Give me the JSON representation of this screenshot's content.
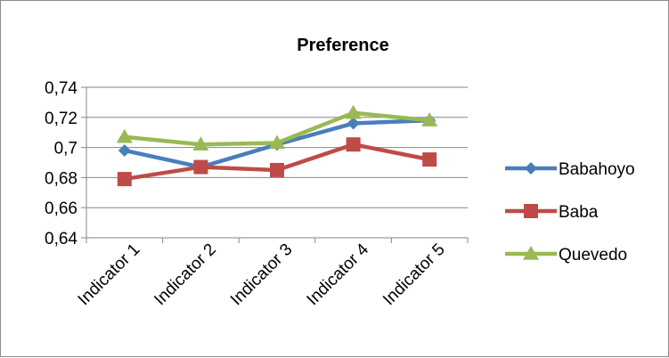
{
  "chart_data": {
    "type": "line",
    "title": "Preference",
    "xlabel": "",
    "ylabel": "",
    "categories": [
      "Indicator 1",
      "Indicator 2",
      "Indicator 3",
      "Indicator 4",
      "Indicator 5"
    ],
    "ylim": [
      0.64,
      0.74
    ],
    "yticks": [
      0.64,
      0.66,
      0.68,
      0.7,
      0.72,
      0.74
    ],
    "ytick_labels": [
      "0,64",
      "0,66",
      "0,68",
      "0,7",
      "0,72",
      "0,74"
    ],
    "grid": true,
    "legend_position": "right",
    "series": [
      {
        "name": "Babahoyo",
        "values": [
          0.698,
          0.687,
          0.702,
          0.716,
          0.718
        ],
        "color": "#4a7ebb",
        "marker": "diamond"
      },
      {
        "name": "Baba",
        "values": [
          0.679,
          0.687,
          0.685,
          0.702,
          0.692
        ],
        "color": "#be4b48",
        "marker": "square"
      },
      {
        "name": "Quevedo",
        "values": [
          0.707,
          0.702,
          0.703,
          0.723,
          0.718
        ],
        "color": "#98b954",
        "marker": "triangle"
      }
    ]
  }
}
